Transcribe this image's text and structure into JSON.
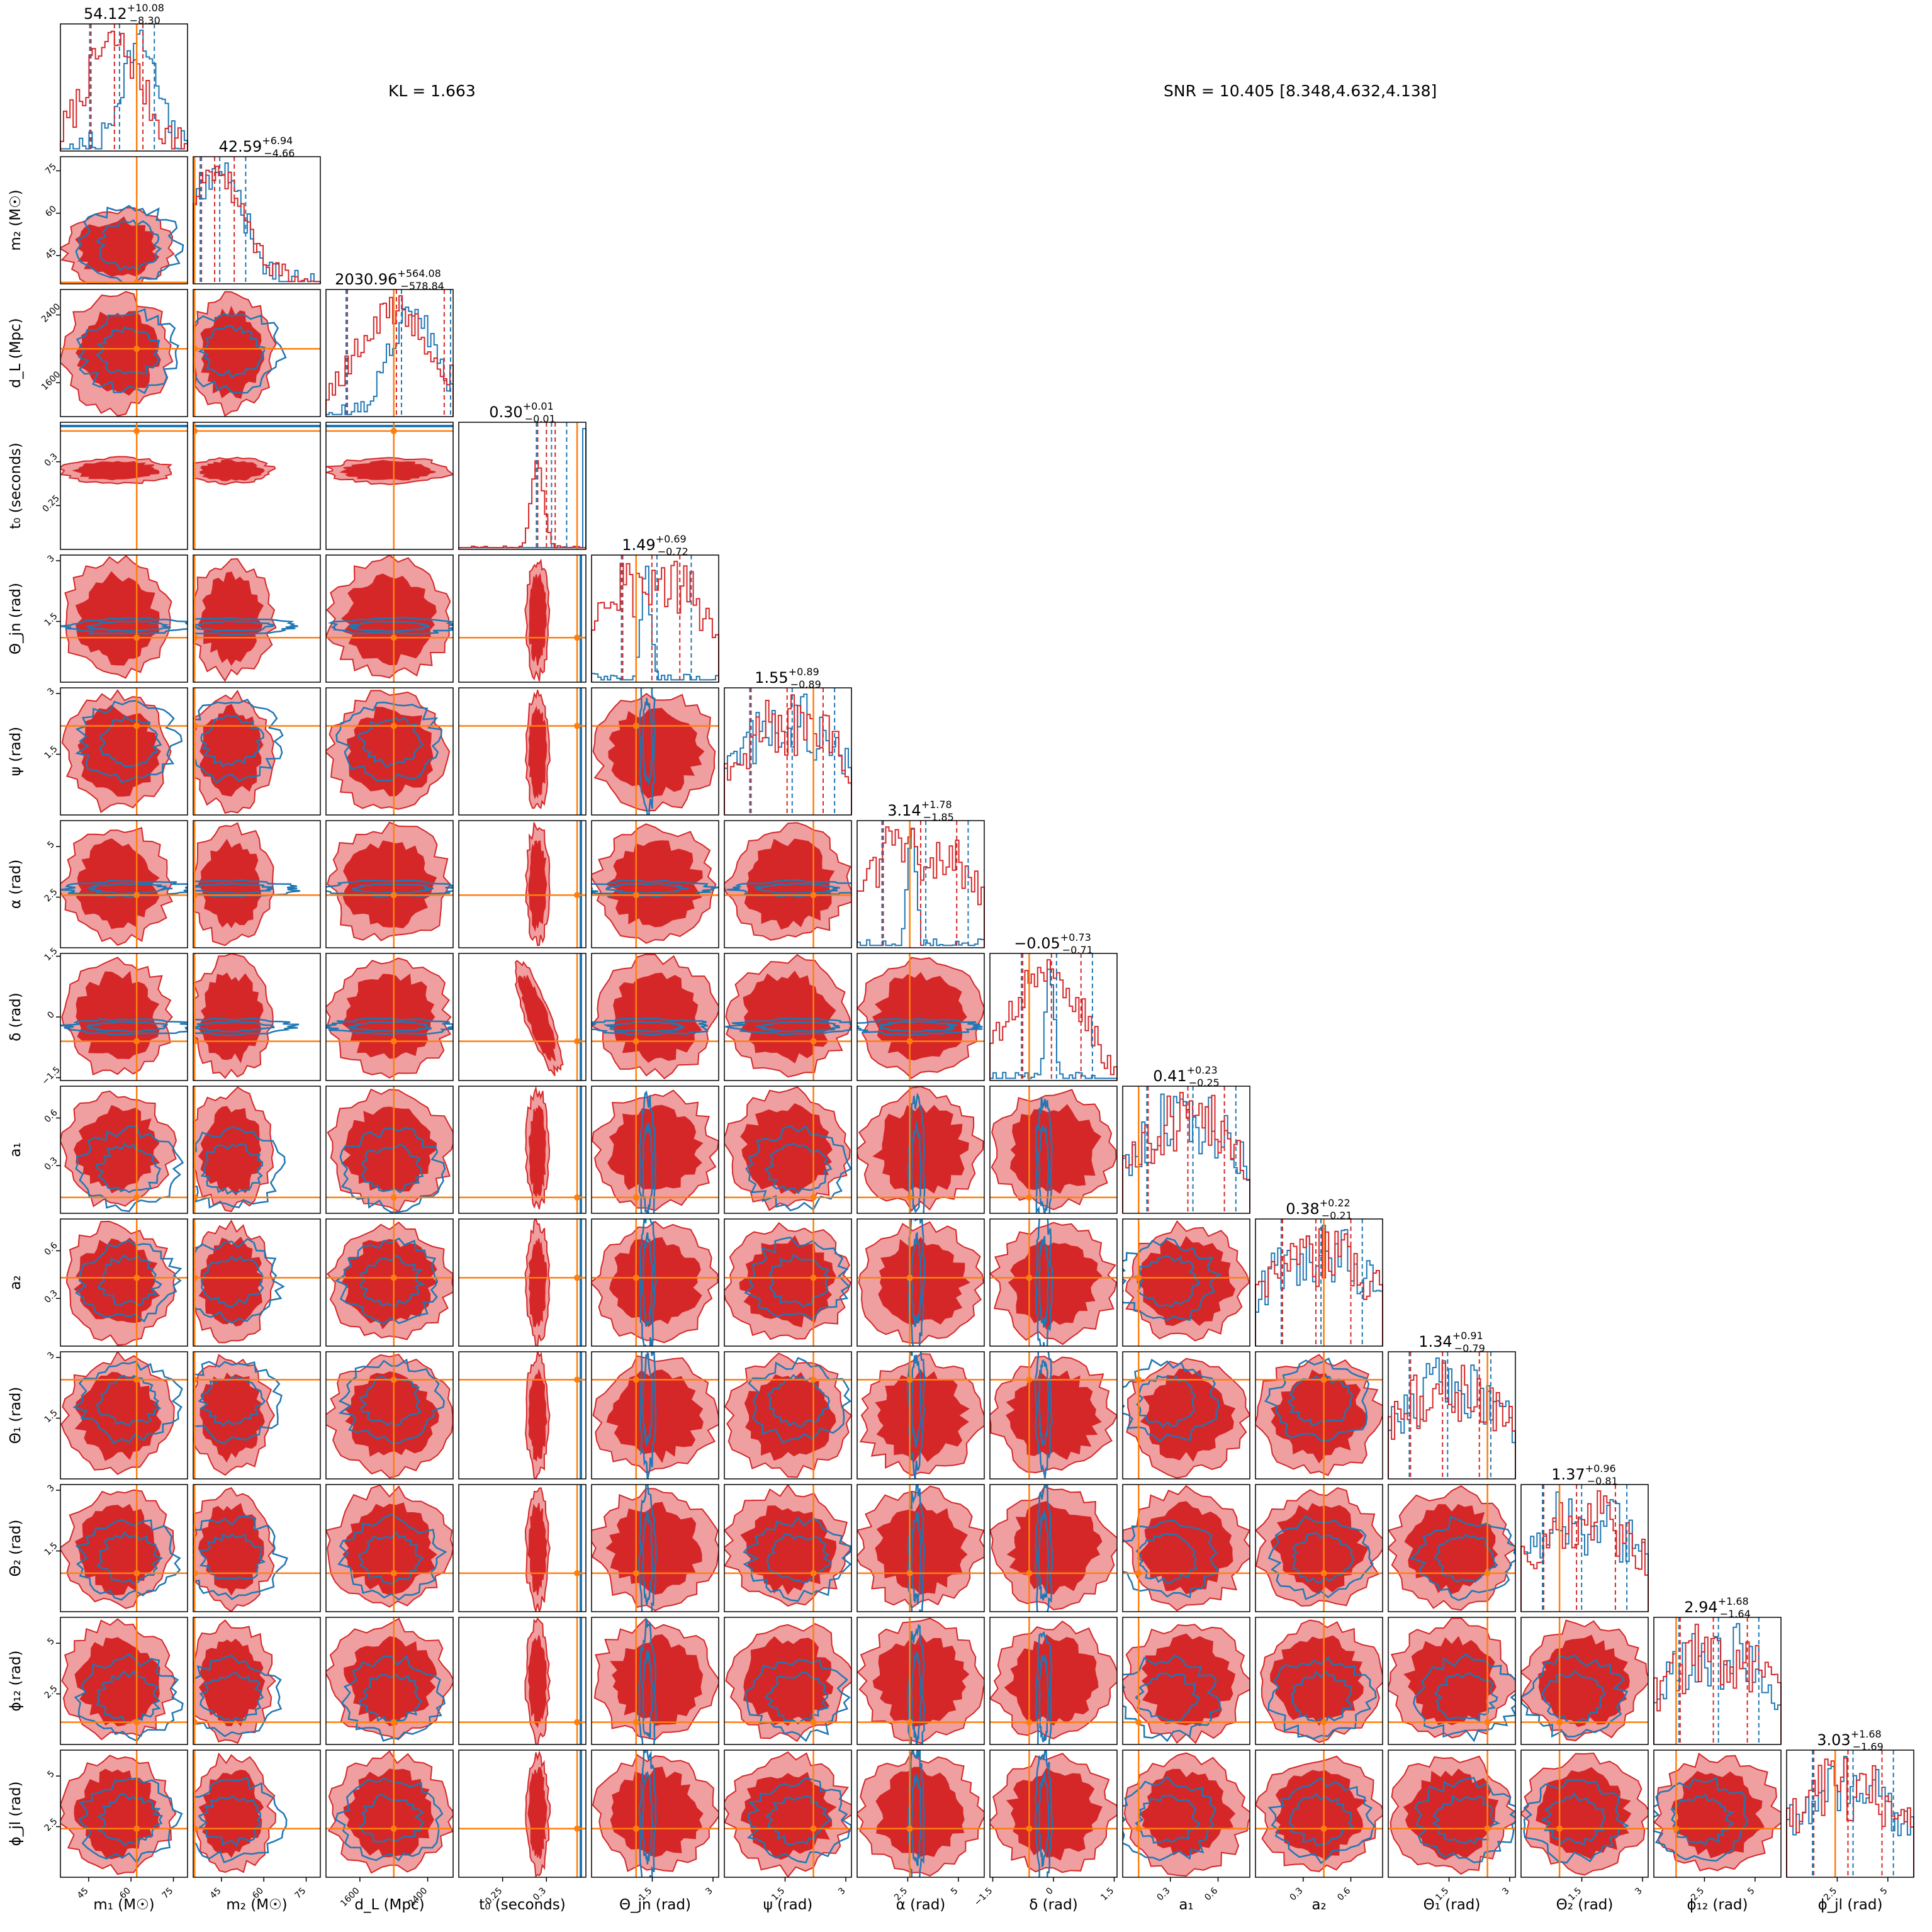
{
  "header": {
    "kl_text": "KL = 1.663",
    "snr_text": "SNR = 10.405 [8.348,4.632,4.138]"
  },
  "colors": {
    "red": "#d62728",
    "red_light": "#ef9fa0",
    "blue": "#1f77b4",
    "orange": "#ff7f0e"
  },
  "chart_data": {
    "type": "corner",
    "parameters": [
      {
        "key": "m1",
        "label": "m₁ (M☉)",
        "range": [
          35,
          80
        ],
        "ticks": [
          45,
          60,
          75
        ],
        "truth": 62,
        "median": 54.12,
        "plus": "+10.08",
        "minus": "−8.30",
        "title": "54.12"
      },
      {
        "key": "m2",
        "label": "m₂ (M☉)",
        "range": [
          35,
          80
        ],
        "ticks": [
          45,
          60,
          75
        ],
        "truth": 35.5,
        "median": 42.59,
        "plus": "+6.94",
        "minus": "−4.66",
        "title": "42.59"
      },
      {
        "key": "dL",
        "label": "d_L (Mpc)",
        "range": [
          1200,
          2700
        ],
        "ticks": [
          1600,
          2400
        ],
        "truth": 2000,
        "median": 2030.96,
        "plus": "+564.08",
        "minus": "−578.84",
        "title": "2030.96"
      },
      {
        "key": "t0",
        "label": "t₀ (seconds)",
        "range": [
          0.2,
          0.345
        ],
        "ticks": [
          0.25,
          0.3
        ],
        "truth": 0.335,
        "median": 0.3,
        "plus": "+0.01",
        "minus": "−0.01",
        "title": "0.30"
      },
      {
        "key": "thetajn",
        "label": "Θ_jn (rad)",
        "range": [
          0,
          3.14
        ],
        "ticks": [
          1.5,
          3.0
        ],
        "truth": 1.1,
        "median": 1.49,
        "plus": "+0.69",
        "minus": "−0.72",
        "title": "1.49"
      },
      {
        "key": "psi",
        "label": "ψ (rad)",
        "range": [
          0,
          3.14
        ],
        "ticks": [
          1.5,
          3.0
        ],
        "truth": 2.2,
        "median": 1.55,
        "plus": "+0.89",
        "minus": "−0.89",
        "title": "1.55"
      },
      {
        "key": "alpha",
        "label": "α (rad)",
        "range": [
          0,
          6.28
        ],
        "ticks": [
          2.5,
          5.0
        ],
        "truth": 2.6,
        "median": 3.14,
        "plus": "+1.78",
        "minus": "−1.85",
        "title": "3.14"
      },
      {
        "key": "delta",
        "label": "δ (rad)",
        "range": [
          -1.57,
          1.57
        ],
        "ticks": [
          -1.5,
          0.0,
          1.5
        ],
        "truth": -0.6,
        "median": -0.05,
        "plus": "+0.73",
        "minus": "−0.71",
        "title": "−0.05"
      },
      {
        "key": "a1",
        "label": "a₁",
        "range": [
          0,
          0.8
        ],
        "ticks": [
          0.3,
          0.6
        ],
        "truth": 0.1,
        "median": 0.41,
        "plus": "+0.23",
        "minus": "−0.25",
        "title": "0.41"
      },
      {
        "key": "a2",
        "label": "a₂",
        "range": [
          0,
          0.8
        ],
        "ticks": [
          0.3,
          0.6
        ],
        "truth": 0.43,
        "median": 0.38,
        "plus": "+0.22",
        "minus": "−0.21",
        "title": "0.38"
      },
      {
        "key": "theta1",
        "label": "Θ₁ (rad)",
        "range": [
          0,
          3.14
        ],
        "ticks": [
          1.5,
          3.0
        ],
        "truth": 2.45,
        "median": 1.34,
        "plus": "+0.91",
        "minus": "−0.79",
        "title": "1.34"
      },
      {
        "key": "theta2",
        "label": "Θ₂ (rad)",
        "range": [
          0,
          3.14
        ],
        "ticks": [
          1.5,
          3.0
        ],
        "truth": 0.95,
        "median": 1.37,
        "plus": "+0.96",
        "minus": "−0.81",
        "title": "1.37"
      },
      {
        "key": "phi12",
        "label": "ϕ₁₂ (rad)",
        "range": [
          0,
          6.28
        ],
        "ticks": [
          2.5,
          5.0
        ],
        "truth": 1.1,
        "median": 2.94,
        "plus": "+1.68",
        "minus": "−1.64",
        "title": "2.94"
      },
      {
        "key": "phijl",
        "label": "ϕ_jl (rad)",
        "range": [
          0,
          6.28
        ],
        "ticks": [
          2.5,
          5.0
        ],
        "truth": 2.4,
        "median": 3.03,
        "plus": "+1.68",
        "minus": "−1.69",
        "title": "3.03"
      }
    ]
  }
}
